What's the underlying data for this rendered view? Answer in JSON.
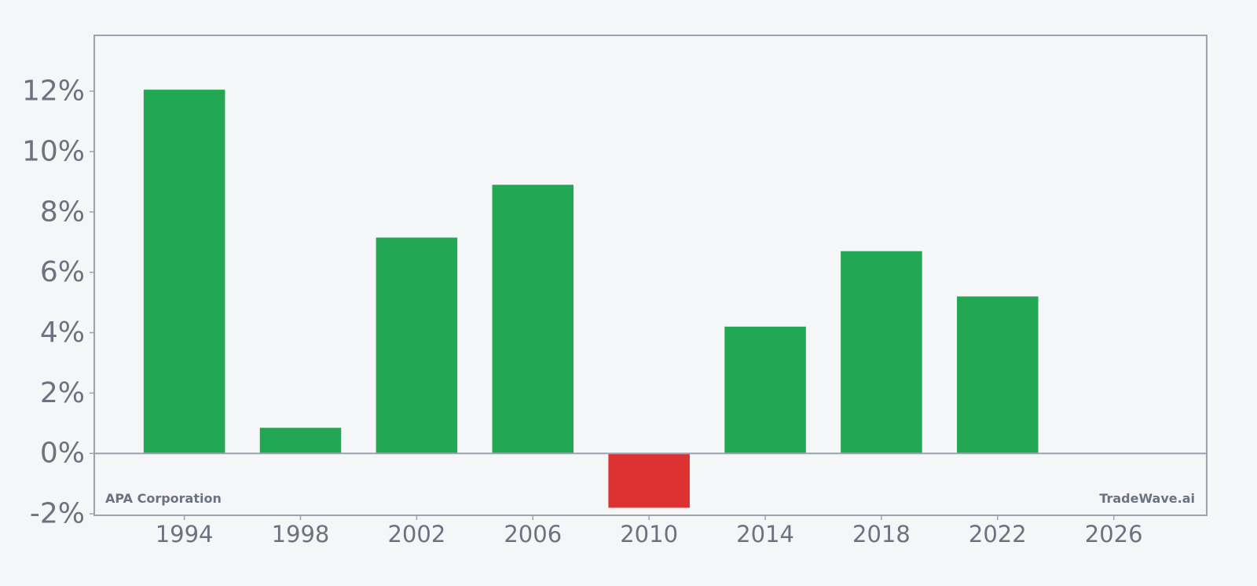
{
  "chart_data": {
    "type": "bar",
    "x": [
      1994,
      1998,
      2002,
      2006,
      2010,
      2014,
      2018,
      2022
    ],
    "values": [
      12.05,
      0.85,
      7.15,
      8.9,
      -1.8,
      4.2,
      6.7,
      5.2
    ],
    "unit": "%",
    "xlim": [
      1990.9,
      2029.2
    ],
    "ylim": [
      -2.05,
      13.85
    ],
    "x_ticks": [
      1994,
      1998,
      2002,
      2006,
      2010,
      2014,
      2018,
      2022,
      2026
    ],
    "x_tick_labels": [
      "1994",
      "1998",
      "2002",
      "2006",
      "2010",
      "2014",
      "2018",
      "2022",
      "2026"
    ],
    "y_ticks": [
      -2,
      0,
      2,
      4,
      6,
      8,
      10,
      12
    ],
    "y_tick_labels": [
      "-2%",
      "0%",
      "2%",
      "4%",
      "6%",
      "8%",
      "10%",
      "12%"
    ],
    "grid": false,
    "legend": "none",
    "colors": {
      "positive": "#22a852",
      "negative": "#dc3232",
      "axis": "#9ca3af",
      "text": "#6b7280"
    }
  },
  "annotations": {
    "company": "APA Corporation",
    "source": "TradeWave.ai"
  }
}
